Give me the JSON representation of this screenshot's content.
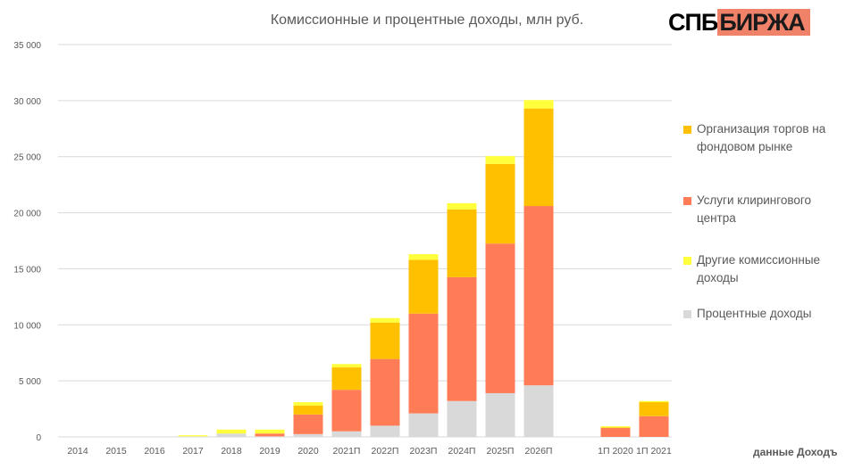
{
  "chart_data": {
    "type": "bar",
    "stacked": true,
    "title": "Комиссионные и процентные доходы, млн руб.",
    "categories": [
      "2014",
      "2015",
      "2016",
      "2017",
      "2018",
      "2019",
      "2020",
      "2021П",
      "2022П",
      "2023П",
      "2024П",
      "2025П",
      "2026П",
      "",
      "1П 2020",
      "1П 2021"
    ],
    "series": [
      {
        "name": "Процентные доходы",
        "color": "#d9d9d9",
        "values": [
          0,
          0,
          0,
          50,
          300,
          50,
          250,
          500,
          1000,
          2100,
          3200,
          3900,
          4600,
          null,
          0,
          0
        ]
      },
      {
        "name": "Услуги клирингового центра",
        "color": "#ff7c56",
        "values": [
          0,
          0,
          0,
          0,
          0,
          250,
          1750,
          3700,
          5950,
          8900,
          11050,
          13350,
          16000,
          null,
          800,
          1850
        ]
      },
      {
        "name": "Организация торгов на фондовом рынке",
        "color": "#ffc000",
        "values": [
          0,
          0,
          0,
          0,
          0,
          0,
          800,
          2000,
          3250,
          4800,
          6050,
          7100,
          8700,
          null,
          50,
          1250
        ]
      },
      {
        "name": "Другие комиссионные доходы",
        "color": "#ffff3c",
        "values": [
          0,
          0,
          0,
          100,
          350,
          350,
          300,
          300,
          400,
          500,
          550,
          700,
          750,
          null,
          100,
          100
        ]
      }
    ],
    "ylim": [
      0,
      35000
    ],
    "yticks": [
      "0",
      "5 000",
      "10 000",
      "15 000",
      "20 000",
      "25 000",
      "30 000",
      "35 000"
    ],
    "grid": true,
    "legend_position": "right",
    "legend_order": [
      2,
      1,
      3,
      0
    ]
  },
  "legend": [
    {
      "l1": "Организация торгов на",
      "l2": "фондовом рынке",
      "color": "#ffc000"
    },
    {
      "l1": "Услуги клирингового",
      "l2": "центра",
      "color": "#ff7c56"
    },
    {
      "l1": "Другие комиссионные",
      "l2": "доходы",
      "color": "#ffff3c"
    },
    {
      "l1": "Процентные доходы",
      "l2": "",
      "color": "#d9d9d9"
    }
  ],
  "logo": {
    "part1": "СПБ",
    "part2": "БИРЖА"
  },
  "source": "данные Доходъ"
}
